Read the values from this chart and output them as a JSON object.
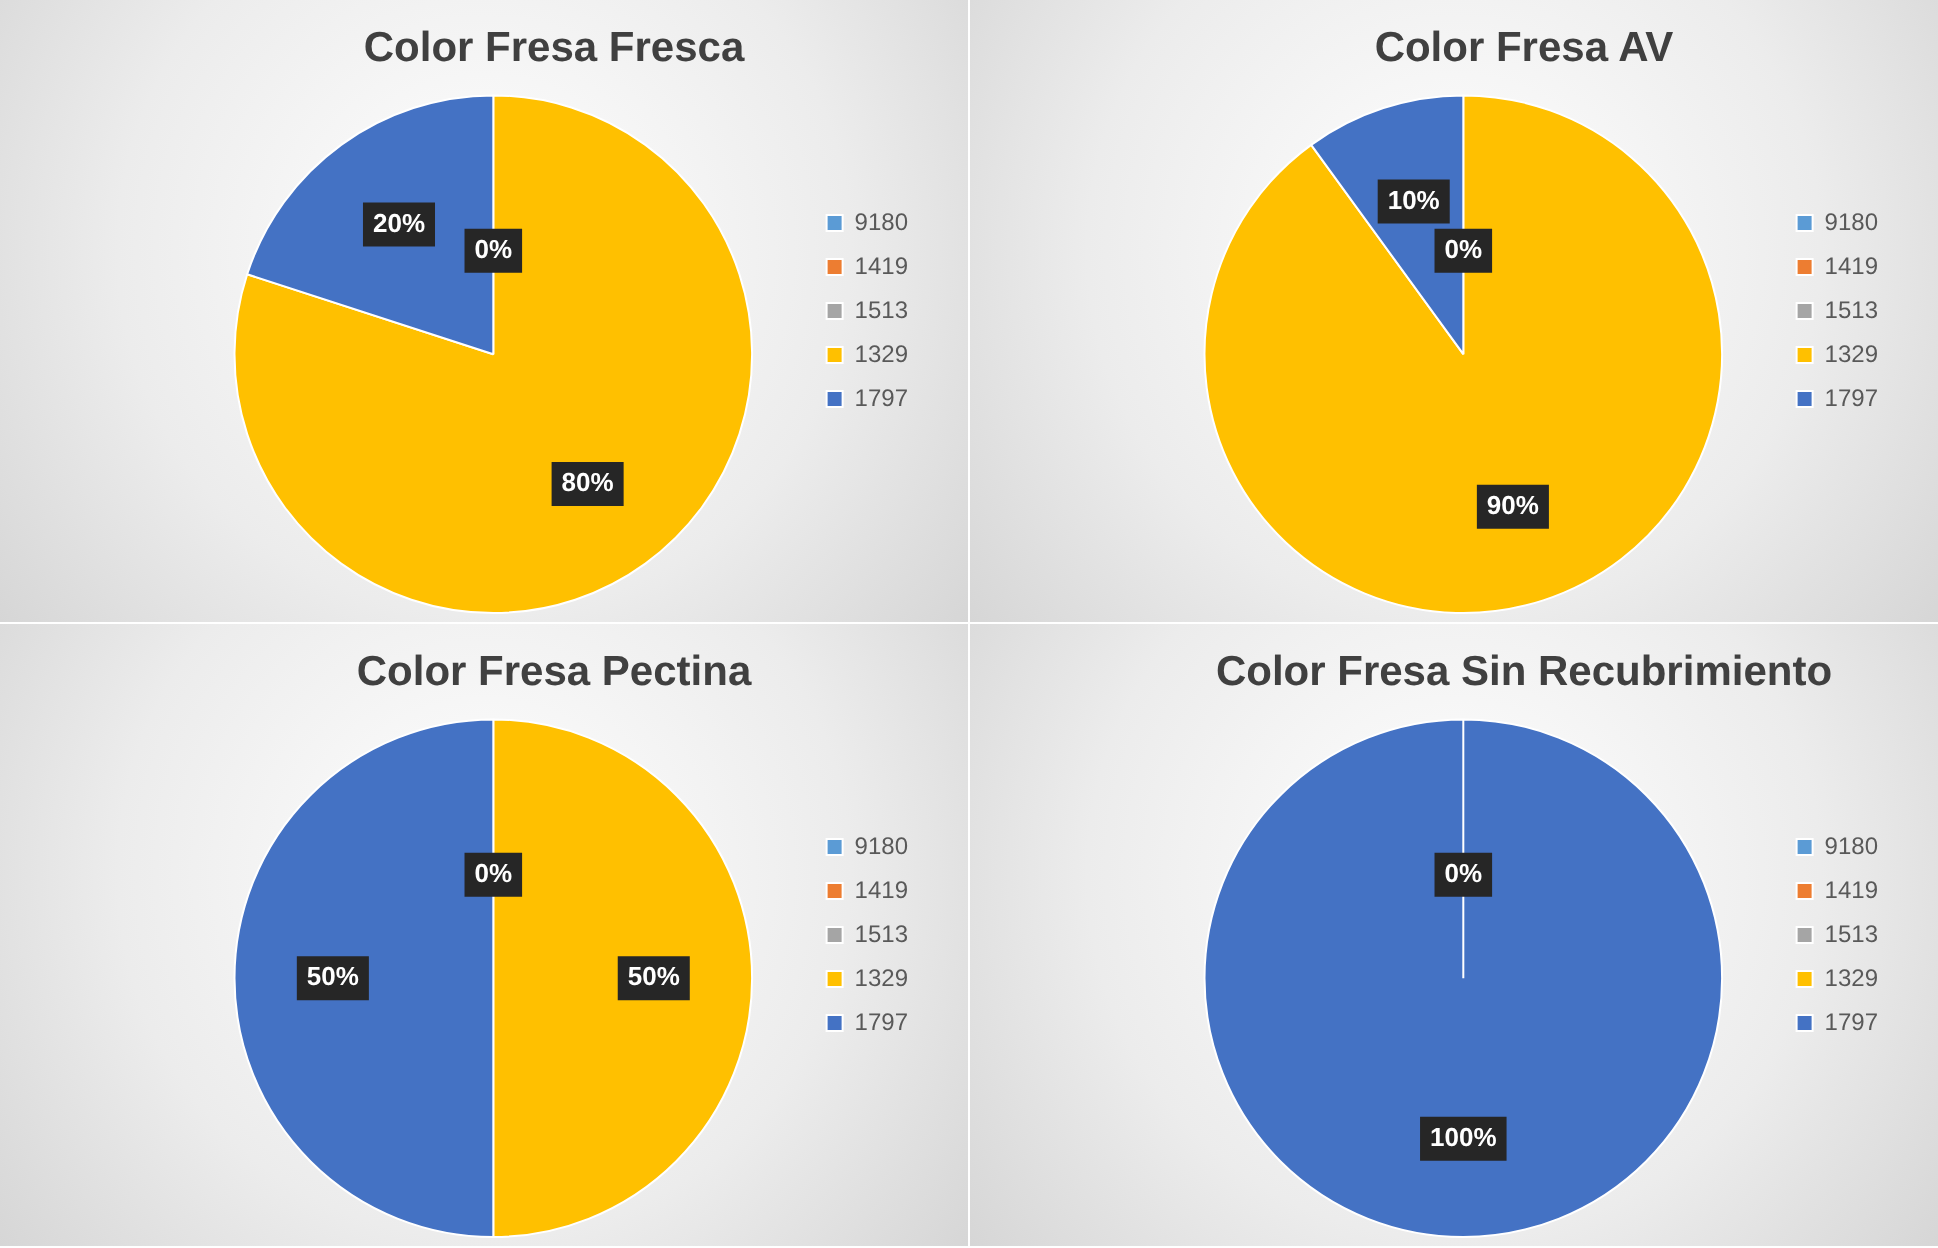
{
  "chart_data": [
    {
      "type": "pie",
      "title": "Color Fresa Fresca",
      "categories": [
        "9180",
        "1419",
        "1513",
        "1329",
        "1797"
      ],
      "values": [
        0,
        0,
        0,
        80,
        20
      ],
      "colors": [
        "#5b9bd5",
        "#ed7d31",
        "#a5a5a5",
        "#ffc000",
        "#4472c4"
      ],
      "value_labels": [
        "0%",
        null,
        null,
        "80%",
        "20%"
      ],
      "legend": "right"
    },
    {
      "type": "pie",
      "title": "Color Fresa AV",
      "categories": [
        "9180",
        "1419",
        "1513",
        "1329",
        "1797"
      ],
      "values": [
        0,
        0,
        0,
        90,
        10
      ],
      "colors": [
        "#5b9bd5",
        "#ed7d31",
        "#a5a5a5",
        "#ffc000",
        "#4472c4"
      ],
      "value_labels": [
        "0%",
        null,
        null,
        "90%",
        "10%"
      ],
      "legend": "right"
    },
    {
      "type": "pie",
      "title": "Color Fresa Pectina",
      "categories": [
        "9180",
        "1419",
        "1513",
        "1329",
        "1797"
      ],
      "values": [
        0,
        0,
        0,
        50,
        50
      ],
      "colors": [
        "#5b9bd5",
        "#ed7d31",
        "#a5a5a5",
        "#ffc000",
        "#4472c4"
      ],
      "value_labels": [
        "0%",
        null,
        null,
        "50%",
        "50%"
      ],
      "legend": "right"
    },
    {
      "type": "pie",
      "title": "Color Fresa Sin Recubrimiento",
      "categories": [
        "9180",
        "1419",
        "1513",
        "1329",
        "1797"
      ],
      "values": [
        0,
        0,
        0,
        0,
        100
      ],
      "colors": [
        "#5b9bd5",
        "#ed7d31",
        "#a5a5a5",
        "#ffc000",
        "#4472c4"
      ],
      "value_labels": [
        "0%",
        null,
        null,
        null,
        "100%"
      ],
      "legend": "right"
    }
  ]
}
